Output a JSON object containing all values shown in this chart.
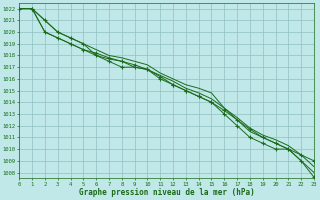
{
  "title": "Graphe pression niveau de la mer (hPa)",
  "bg_color": "#c0e8e8",
  "grid_color": "#90c0c0",
  "line_color": "#1a6b1a",
  "xlim": [
    0,
    23
  ],
  "ylim": [
    1007.5,
    1022.5
  ],
  "xticks": [
    0,
    1,
    2,
    3,
    4,
    5,
    6,
    7,
    8,
    9,
    10,
    11,
    12,
    13,
    14,
    15,
    16,
    17,
    18,
    19,
    20,
    21,
    22,
    23
  ],
  "yticks": [
    1008,
    1009,
    1010,
    1011,
    1012,
    1013,
    1014,
    1015,
    1016,
    1017,
    1018,
    1019,
    1020,
    1021,
    1022
  ],
  "series": [
    {
      "y": [
        1022,
        1022,
        1021,
        1020,
        1019.5,
        1019,
        1018,
        1017.5,
        1017,
        1017,
        1016.8,
        1016,
        1015.5,
        1015,
        1014.5,
        1014,
        1013,
        1012,
        1011,
        1010.5,
        1010,
        1010,
        1009,
        1007.6
      ],
      "marker": true
    },
    {
      "y": [
        1022,
        1022,
        1021,
        1020,
        1019.5,
        1019,
        1018.5,
        1018,
        1017.8,
        1017.5,
        1017.2,
        1016.5,
        1016,
        1015.5,
        1015.2,
        1014.8,
        1013.5,
        1012.5,
        1011.5,
        1011,
        1010.5,
        1010,
        1009,
        1008
      ],
      "marker": false
    },
    {
      "y": [
        1022,
        1022,
        1020,
        1019.5,
        1019,
        1018.5,
        1018,
        1017.7,
        1017.5,
        1017,
        1016.8,
        1016.3,
        1015.8,
        1015.2,
        1014.8,
        1014.3,
        1013.5,
        1012.7,
        1011.8,
        1011.2,
        1010.8,
        1010.3,
        1009.5,
        1008.5
      ],
      "marker": false
    },
    {
      "y": [
        1022,
        1022,
        1020,
        1019.5,
        1019,
        1018.5,
        1018.2,
        1017.8,
        1017.5,
        1017.2,
        1016.8,
        1016.2,
        1015.5,
        1015,
        1014.5,
        1014,
        1013.3,
        1012.5,
        1011.7,
        1011,
        1010.5,
        1010,
        1009.5,
        1009
      ],
      "marker": true
    }
  ]
}
